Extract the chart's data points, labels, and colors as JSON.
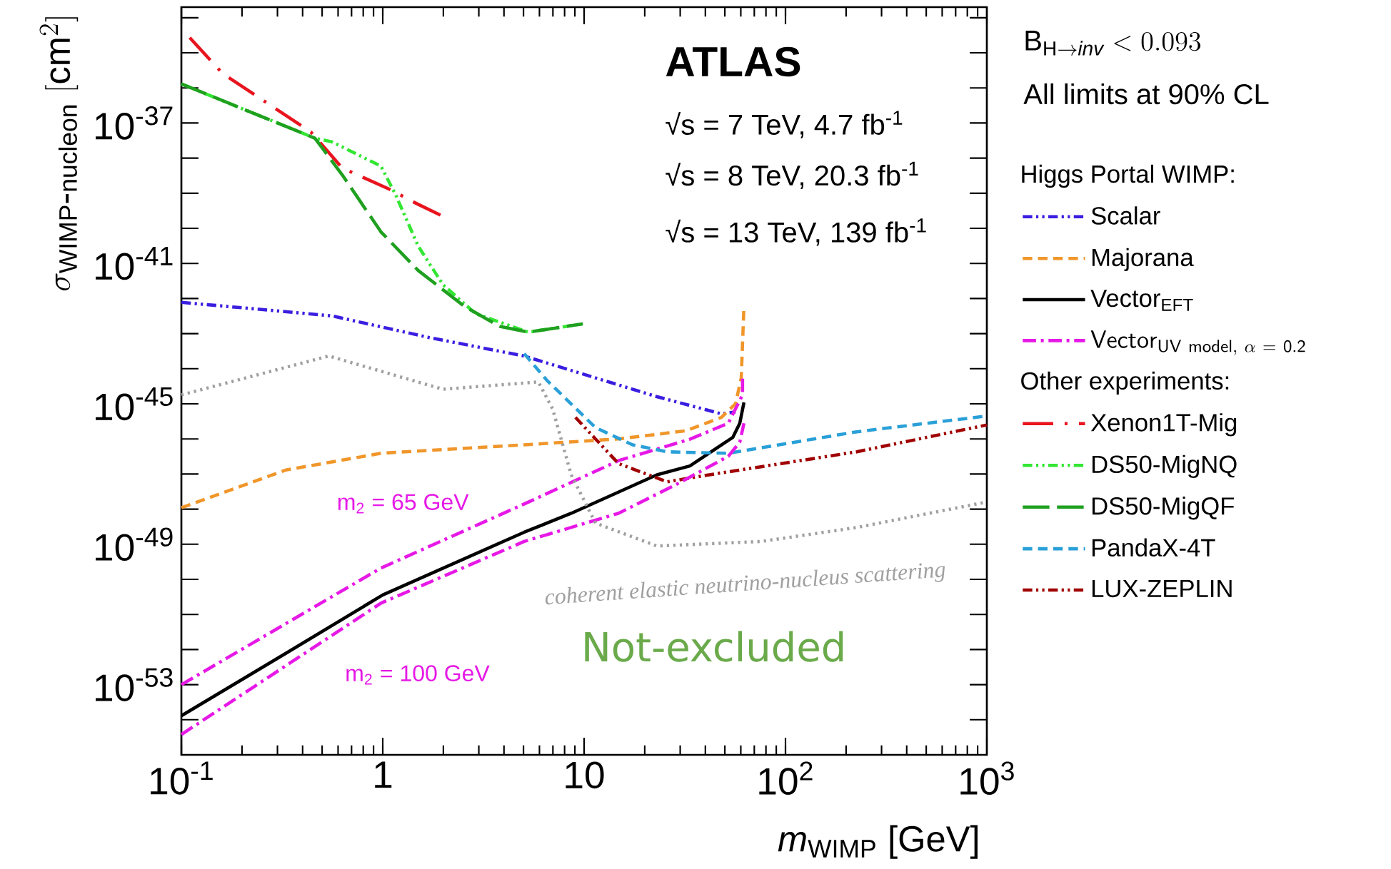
{
  "chart_data": {
    "type": "line",
    "log": "xy",
    "legend": "right",
    "legend_title": "Higgs Portal WIMP:",
    "xlabel": "*m*$_{WIMP}$ [GeV]",
    "ylabel": "\\sigma_{\\mathrm{WIMP}\\mbox{-}\\mathrm{nucleon}}\\ [\\mathrm{cm}^{2}]",
    "xlim": [
      0.1,
      1000
    ],
    "ylim": [
      1e-55,
      2e-34
    ],
    "xticks": [
      {
        "value": 0.1,
        "label": "10$^{-1}$"
      },
      1,
      10,
      {
        "value": 100,
        "label": "10$^{2}$"
      },
      {
        "value": 1000,
        "label": "10$^{3}$"
      }
    ],
    "yticks": [
      {
        "value": 1e-55,
        "label": null
      },
      {
        "value": 1e-54,
        "label": null
      },
      {
        "value": 1e-53,
        "label": "10$^{-53}$"
      },
      {
        "value": 1e-52,
        "label": null
      },
      {
        "value": 1e-51,
        "label": null
      },
      {
        "value": 1e-50,
        "label": null
      },
      {
        "value": 1e-49,
        "label": "10$^{-49}$"
      },
      {
        "value": 1e-48,
        "label": null
      },
      {
        "value": 1e-47,
        "label": null
      },
      {
        "value": 1e-46,
        "label": null
      },
      {
        "value": 1e-45,
        "label": "10$^{-45}$"
      },
      {
        "value": 1e-44,
        "label": null
      },
      {
        "value": 1e-43,
        "label": null
      },
      {
        "value": 1e-42,
        "label": null
      },
      {
        "value": 1e-41,
        "label": "10$^{-41}$"
      },
      {
        "value": 1e-40,
        "label": null
      },
      {
        "value": 1e-39,
        "label": null
      },
      {
        "value": 1e-38,
        "label": null
      },
      {
        "value": 1e-37,
        "label": "10$^{-37}$"
      },
      {
        "value": 1e-36,
        "label": null
      },
      {
        "value": 1e-35,
        "label": null
      },
      {
        "value": 1e-34,
        "label": null
      }
    ],
    "series": [
      {
        "name": "Scalar",
        "color": "#3a1ee0",
        "line_style": "dashdotdotted",
        "x": [
          0.1,
          0.56,
          1.69,
          5.04,
          23.0,
          48.0,
          56.5
        ],
        "values": [
          7.8e-43,
          3.2e-43,
          7.8e-44,
          2.3e-44,
          1.6e-45,
          5.2e-46,
          5.9e-46
        ]
      },
      {
        "name": "Majorana",
        "color": "#f0962a",
        "line_style": "dashed",
        "x": [
          0.1,
          0.33,
          0.98,
          5.04,
          14.8,
          31.9,
          48.0,
          56.5,
          60.3,
          62.2
        ],
        "values": [
          1.1e-48,
          1.3e-47,
          3.9e-47,
          6.8e-47,
          1e-46,
          1.7e-46,
          4.1e-46,
          1e-45,
          5.5e-45,
          6e-43
        ]
      },
      {
        "name": "Vector$_{EFT}$",
        "color": "#000000",
        "line_style": "solid",
        "x": [
          0.1,
          0.33,
          1.0,
          5.04,
          8.63,
          23.0,
          33.5,
          54.7,
          59.3,
          62.2
        ],
        "values": [
          1.3e-54,
          7.8e-53,
          3.6e-51,
          2.2e-49,
          7.6e-49,
          9.5e-48,
          1.7e-47,
          1.1e-46,
          2.8e-46,
          1.1e-45
        ]
      },
      {
        "name": "\\mathsf{Vector}_{\\mathsf{UV\\ model},\\ \\alpha\\ =\\ \\mathsf{0.2}}",
        "color": "#e619e6",
        "line_style": "dashdotted",
        "x": [
          0.1,
          0.98,
          5.04,
          14.8,
          33.5,
          52.0,
          61.2,
          61.2
        ],
        "values": [
          1e-53,
          2.1e-50,
          1.4e-48,
          2.4e-47,
          9.8e-47,
          2.8e-46,
          1.8e-45,
          6.6e-45
        ]
      },
      {
        "name": "Xenon1T-Mig",
        "color": "#e8141e",
        "line_style": "longdashdotted",
        "x": [
          0.11,
          0.16,
          0.44,
          0.63,
          1.08,
          1.48,
          1.99
        ],
        "values": [
          2.7e-35,
          2.6e-36,
          5.5e-38,
          5.2e-39,
          1.3e-39,
          5e-40,
          2.2e-40
        ]
      },
      {
        "name": "DS50-MigNQ",
        "color": "#33e633",
        "line_style": "dashdotdotted",
        "x": [
          0.1,
          0.46,
          0.56,
          0.98,
          1.16,
          1.5,
          1.99,
          2.89,
          5.28,
          9.84
        ],
        "values": [
          1.3e-36,
          3.7e-38,
          2.9e-38,
          5.9e-39,
          8.9e-40,
          3.1e-41,
          2.5e-42,
          3.7e-43,
          1.1e-43,
          1.9e-43
        ]
      },
      {
        "name": "DS50-MigQF",
        "color": "#1fa01f",
        "line_style": "longdashed",
        "x": [
          0.1,
          0.46,
          0.63,
          0.98,
          1.5,
          2.54,
          3.82,
          5.28,
          9.84
        ],
        "values": [
          1.3e-36,
          3.7e-38,
          3.3e-39,
          7.9e-41,
          6.3e-42,
          6e-43,
          1.6e-43,
          1.1e-43,
          1.9e-43
        ]
      },
      {
        "name": "PandaX-4T",
        "color": "#2aa0d8",
        "line_style": "dashed",
        "x": [
          5.04,
          6.55,
          11.4,
          17.4,
          25.8,
          52.0,
          226,
          1000
        ],
        "values": [
          2.7e-44,
          4.6e-45,
          2.1e-46,
          6.8e-47,
          4.3e-47,
          3.9e-47,
          1.6e-46,
          4.5e-46
        ]
      },
      {
        "name": "LUX-ZEPLIN",
        "color": "#a00000",
        "line_style": "dashdotdotted",
        "x": [
          9.06,
          14.8,
          25.8,
          44.2,
          226,
          1000
        ],
        "values": [
          4.1e-46,
          2e-47,
          6e-48,
          1e-47,
          4.3e-47,
          2.5e-46
        ]
      },
      {
        "color": "#e619e6",
        "line_style": "dashdotted",
        "x": [
          0.1,
          0.98,
          5.04,
          14.8,
          28.4,
          52.0,
          59.3,
          62.2
        ],
        "values": [
          3.8e-55,
          2.1e-51,
          1.2e-49,
          7.6e-49,
          4.9e-48,
          3.2e-47,
          8.1e-47,
          2.8e-46
        ]
      },
      {
        "color": "#a0a0a0",
        "line_style": "dotted",
        "x": [
          0.1,
          0.54,
          1.99,
          5.93,
          6.98,
          8.63,
          11.4,
          23.0,
          75.7,
          226,
          1000
        ],
        "values": [
          1.8e-45,
          2.3e-44,
          2.6e-45,
          4.2e-45,
          7.1e-46,
          9.5e-48,
          4e-49,
          8.9e-50,
          1.2e-49,
          3e-49,
          1.6e-48
        ]
      }
    ],
    "annotations": [
      "ATLAS",
      "√s =  7 TeV,   4.7 fb$^{-1}$",
      "√s =  8 TeV,  20.3 fb$^{-1}$",
      "√s = 13 TeV,   139 fb$^{-1}$",
      "\\mathrm{B}_{\\mathrm{H} \\rightarrow \\mathit{inv}} < 0.093",
      "All limits at 90% CL",
      "Other experiments:",
      "m$_{2}$ = 65 GeV",
      "m$_{2}$ = 100 GeV",
      "coherent elastic neutrino-nucleus scattering",
      "Not-excluded"
    ]
  }
}
